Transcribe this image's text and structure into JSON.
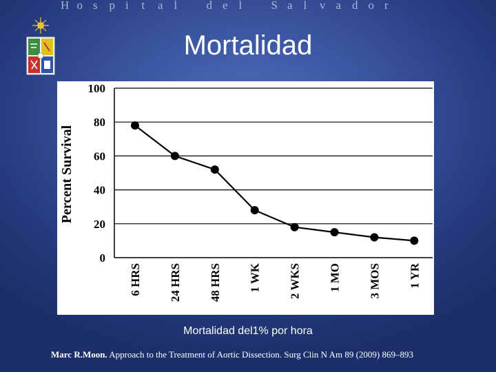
{
  "header": {
    "institution": "Hospital del Salvador",
    "letters": [
      "H",
      "o",
      "s",
      "p",
      "i",
      "t",
      "a",
      "l",
      " ",
      "d",
      "e",
      "l",
      " ",
      "S",
      "a",
      "l",
      "v",
      "a",
      "d",
      "o",
      "r"
    ]
  },
  "slide": {
    "title": "Mortalidad",
    "subtitle": "Mortalidad del1% por hora"
  },
  "citation": {
    "author": "Marc R.Moon.",
    "text": " Approach to the Treatment of Aortic Dissection. Surg Clin N Am 89 (2009) 869–893"
  },
  "colors": {
    "line": "#000000",
    "gridline": "#000000",
    "panel": "#ffffff"
  },
  "chart_data": {
    "type": "line",
    "categories": [
      "6 HRS",
      "24 HRS",
      "48 HRS",
      "1 WK",
      "2 WKS",
      "1 MO",
      "3 MOS",
      "1 YR"
    ],
    "series": [
      {
        "values": [
          78,
          60,
          52,
          28,
          18,
          15,
          12,
          10
        ]
      }
    ],
    "ylabel": "Percent Survival",
    "xlabel": "",
    "ylim": [
      0,
      100
    ],
    "yticks": [
      "0",
      "20",
      "40",
      "60",
      "80",
      "100"
    ],
    "grid": true,
    "marker": "circle"
  }
}
